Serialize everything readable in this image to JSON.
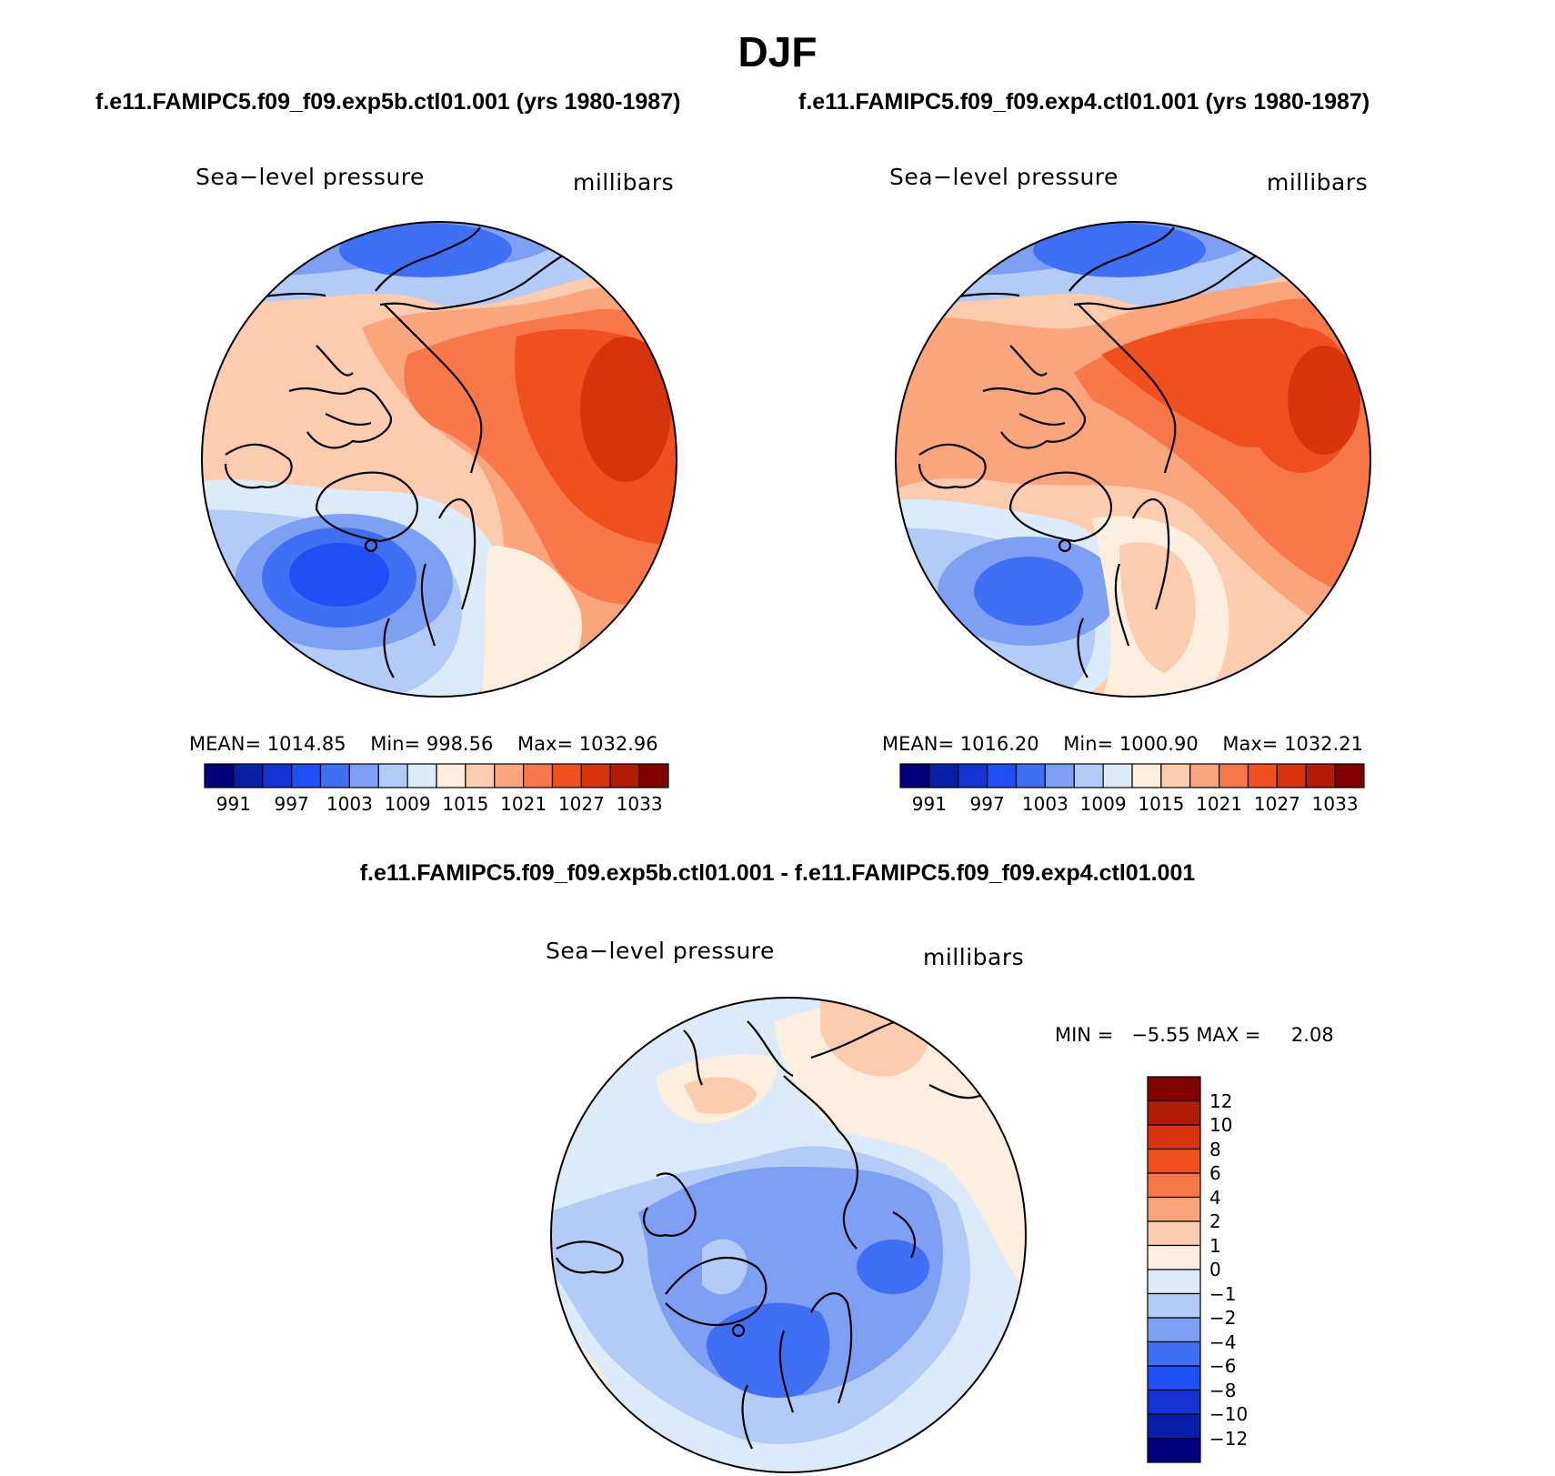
{
  "figure": {
    "title": "DJF",
    "case1_title": "f.e11.FAMIPC5.f09_f09.exp5b.ctl01.001 (yrs 1980-1987)",
    "case2_title": "f.e11.FAMIPC5.f09_f09.exp4.ctl01.001 (yrs 1980-1987)",
    "diff_title": "f.e11.FAMIPC5.f09_f09.exp5b.ctl01.001 - f.e11.FAMIPC5.f09_f09.exp4.ctl01.001"
  },
  "panels": {
    "left": {
      "variable": "Sea−level pressure",
      "units": "millibars",
      "mean_label": "MEAN=",
      "mean_value": "1014.85",
      "min_label": "Min=",
      "min_value": "998.56",
      "max_label": "Max=",
      "max_value": "1032.96"
    },
    "right": {
      "variable": "Sea−level pressure",
      "units": "millibars",
      "mean_label": "MEAN=",
      "mean_value": "1016.20",
      "min_label": "Min=",
      "min_value": "1000.90",
      "max_label": "Max=",
      "max_value": "1032.21"
    },
    "diff": {
      "variable": "Sea−level pressure",
      "units": "millibars",
      "min_label": "MIN =",
      "min_value": "−5.55",
      "max_label": "MAX =",
      "max_value": "2.08"
    }
  },
  "colorbar_abs": {
    "colors": [
      "#00007f",
      "#0a1fa8",
      "#1433d2",
      "#1f4ff5",
      "#3f6ff5",
      "#7da0f5",
      "#b3cbf7",
      "#dcebf9",
      "#fdeedd",
      "#fdcbad",
      "#fba57c",
      "#f8784a",
      "#f0501f",
      "#d8340c",
      "#b21b05",
      "#800000"
    ],
    "tick_labels": [
      "991",
      "997",
      "1003",
      "1009",
      "1015",
      "1021",
      "1027",
      "1033"
    ]
  },
  "colorbar_diff": {
    "colors": [
      "#00007f",
      "#0a1fa8",
      "#1433d2",
      "#1f4ff5",
      "#3f6ff5",
      "#7da0f5",
      "#b3cbf7",
      "#dcebf9",
      "#fdeedd",
      "#fdcbad",
      "#fba57c",
      "#f8784a",
      "#f0501f",
      "#d8340c",
      "#b21b05",
      "#800000"
    ],
    "tick_labels": [
      "12",
      "10",
      "8",
      "6",
      "4",
      "2",
      "1",
      "0",
      "−1",
      "−2",
      "−4",
      "−6",
      "−8",
      "−10",
      "−12"
    ]
  }
}
